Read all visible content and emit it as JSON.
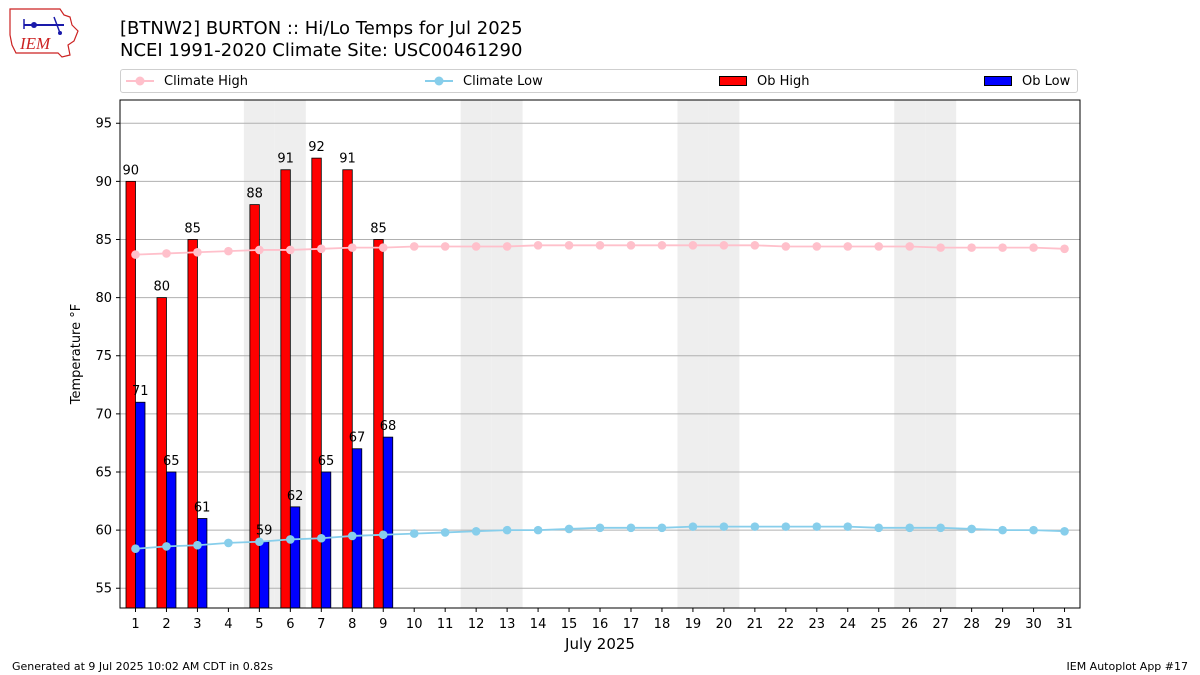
{
  "header": {
    "logo_text": "IEM",
    "title_line1": "[BTNW2] BURTON :: Hi/Lo Temps for Jul 2025",
    "title_line2": "NCEI 1991-2020 Climate Site: USC00461290"
  },
  "legend": {
    "climate_high": "Climate High",
    "climate_low": "Climate Low",
    "ob_high": "Ob High",
    "ob_low": "Ob Low"
  },
  "footer": {
    "generated": "Generated at 9 Jul 2025 10:02 AM CDT in 0.82s",
    "app": "IEM Autoplot App #17"
  },
  "colors": {
    "ob_high": "#ff0000",
    "ob_low": "#0000ff",
    "climate_high": "#ffc0cb",
    "climate_low": "#87ceeb",
    "weekend_shade": "#eeeeee",
    "grid": "#b0b0b0"
  },
  "chart_data": {
    "type": "bar",
    "xlabel": "July 2025",
    "ylabel": "Temperature °F",
    "ylim": [
      53.3,
      97
    ],
    "yticks": [
      55,
      60,
      65,
      70,
      75,
      80,
      85,
      90,
      95
    ],
    "grid": true,
    "legend_position": "top",
    "days": [
      1,
      2,
      3,
      4,
      5,
      6,
      7,
      8,
      9,
      10,
      11,
      12,
      13,
      14,
      15,
      16,
      17,
      18,
      19,
      20,
      21,
      22,
      23,
      24,
      25,
      26,
      27,
      28,
      29,
      30,
      31
    ],
    "shaded_days": [
      5,
      6,
      12,
      13,
      19,
      20,
      26,
      27
    ],
    "ob_high": [
      90,
      80,
      85,
      null,
      88,
      91,
      92,
      91,
      85
    ],
    "ob_low": [
      71,
      65,
      61,
      null,
      59,
      62,
      65,
      67,
      68
    ],
    "climate_high": [
      83.7,
      83.8,
      83.9,
      84.0,
      84.1,
      84.1,
      84.2,
      84.3,
      84.3,
      84.4,
      84.4,
      84.4,
      84.4,
      84.5,
      84.5,
      84.5,
      84.5,
      84.5,
      84.5,
      84.5,
      84.5,
      84.4,
      84.4,
      84.4,
      84.4,
      84.4,
      84.3,
      84.3,
      84.3,
      84.3,
      84.2
    ],
    "climate_low": [
      58.4,
      58.6,
      58.7,
      58.9,
      59.0,
      59.2,
      59.3,
      59.5,
      59.6,
      59.7,
      59.8,
      59.9,
      60.0,
      60.0,
      60.1,
      60.2,
      60.2,
      60.2,
      60.3,
      60.3,
      60.3,
      60.3,
      60.3,
      60.3,
      60.2,
      60.2,
      60.2,
      60.1,
      60.0,
      60.0,
      59.9
    ]
  }
}
